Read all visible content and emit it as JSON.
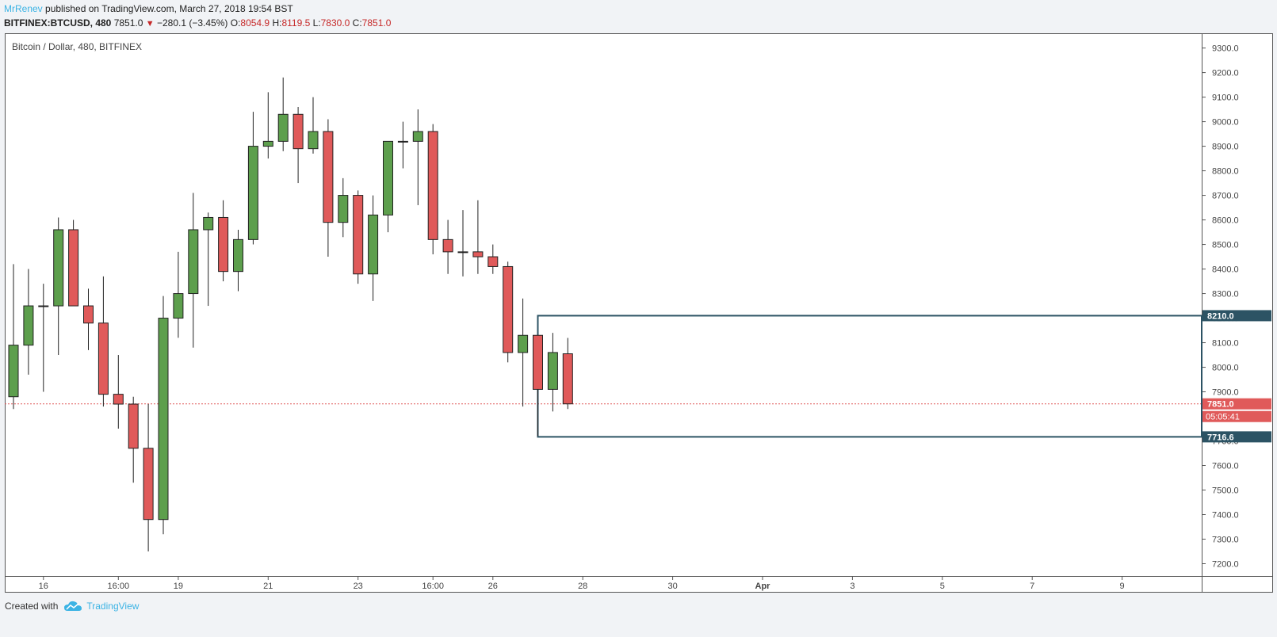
{
  "header": {
    "user": "MrRenev",
    "published": "published on TradingView.com, March 27, 2018 19:54 BST",
    "symbol": "BITFINEX:BTCUSD, 480",
    "last": "7851.0",
    "change": "−280.1 (−3.45%)",
    "o_label": "O:",
    "o_value": "8054.9",
    "h_label": "H:",
    "h_value": "8119.5",
    "l_label": "L:",
    "l_value": "7830.0",
    "c_label": "C:",
    "c_value": "7851.0"
  },
  "footer": {
    "created": "Created with",
    "brand": "TradingView"
  },
  "colors": {
    "up": "#5d9f4d",
    "down": "#e05a5a",
    "rect": "#2c5364",
    "grid": "#e6e9ec"
  },
  "chart_data": {
    "type": "candlestick",
    "title": "Bitcoin / Dollar, 480, BITFINEX",
    "ylim": [
      7150,
      9360
    ],
    "y_ticks": [
      "9300.0",
      "9200.0",
      "9100.0",
      "9000.0",
      "8900.0",
      "8800.0",
      "8700.0",
      "8600.0",
      "8500.0",
      "8400.0",
      "8300.0",
      "8200.0",
      "8100.0",
      "8000.0",
      "7900.0",
      "7800.0",
      "7700.0",
      "7600.0",
      "7500.0",
      "7400.0",
      "7300.0",
      "7200.0"
    ],
    "x_ticks": [
      {
        "slot": 2,
        "label": "16"
      },
      {
        "slot": 7,
        "label": "16:00"
      },
      {
        "slot": 11,
        "label": "19"
      },
      {
        "slot": 17,
        "label": "21"
      },
      {
        "slot": 23,
        "label": "23"
      },
      {
        "slot": 28,
        "label": "16:00"
      },
      {
        "slot": 32,
        "label": "26"
      },
      {
        "slot": 38,
        "label": "28"
      },
      {
        "slot": 44,
        "label": "30"
      },
      {
        "slot": 50,
        "label": "Apr"
      },
      {
        "slot": 56,
        "label": "3"
      },
      {
        "slot": 62,
        "label": "5"
      },
      {
        "slot": 68,
        "label": "7"
      },
      {
        "slot": 74,
        "label": "9"
      }
    ],
    "candles": [
      {
        "o": 7880,
        "h": 8420,
        "l": 7830,
        "c": 8090
      },
      {
        "o": 8090,
        "h": 8400,
        "l": 7970,
        "c": 8250
      },
      {
        "o": 8250,
        "h": 8340,
        "l": 7900,
        "c": 8250
      },
      {
        "o": 8250,
        "h": 8610,
        "l": 8050,
        "c": 8560
      },
      {
        "o": 8560,
        "h": 8600,
        "l": 8250,
        "c": 8250
      },
      {
        "o": 8250,
        "h": 8320,
        "l": 8070,
        "c": 8180
      },
      {
        "o": 8180,
        "h": 8370,
        "l": 7840,
        "c": 7890
      },
      {
        "o": 7890,
        "h": 8050,
        "l": 7750,
        "c": 7850
      },
      {
        "o": 7850,
        "h": 7880,
        "l": 7530,
        "c": 7670
      },
      {
        "o": 7670,
        "h": 7850,
        "l": 7250,
        "c": 7380
      },
      {
        "o": 7380,
        "h": 8290,
        "l": 7320,
        "c": 8200
      },
      {
        "o": 8200,
        "h": 8470,
        "l": 8120,
        "c": 8300
      },
      {
        "o": 8300,
        "h": 8710,
        "l": 8080,
        "c": 8560
      },
      {
        "o": 8560,
        "h": 8630,
        "l": 8250,
        "c": 8610
      },
      {
        "o": 8610,
        "h": 8680,
        "l": 8350,
        "c": 8390
      },
      {
        "o": 8390,
        "h": 8560,
        "l": 8310,
        "c": 8520
      },
      {
        "o": 8520,
        "h": 9040,
        "l": 8500,
        "c": 8900
      },
      {
        "o": 8900,
        "h": 9120,
        "l": 8850,
        "c": 8920
      },
      {
        "o": 8920,
        "h": 9180,
        "l": 8880,
        "c": 9030
      },
      {
        "o": 9030,
        "h": 9060,
        "l": 8750,
        "c": 8890
      },
      {
        "o": 8890,
        "h": 9100,
        "l": 8870,
        "c": 8960
      },
      {
        "o": 8960,
        "h": 9010,
        "l": 8450,
        "c": 8590
      },
      {
        "o": 8590,
        "h": 8770,
        "l": 8530,
        "c": 8700
      },
      {
        "o": 8700,
        "h": 8720,
        "l": 8340,
        "c": 8380
      },
      {
        "o": 8380,
        "h": 8700,
        "l": 8270,
        "c": 8620
      },
      {
        "o": 8620,
        "h": 8920,
        "l": 8550,
        "c": 8920
      },
      {
        "o": 8920,
        "h": 9000,
        "l": 8810,
        "c": 8920
      },
      {
        "o": 8920,
        "h": 9050,
        "l": 8660,
        "c": 8960
      },
      {
        "o": 8960,
        "h": 8990,
        "l": 8460,
        "c": 8520
      },
      {
        "o": 8520,
        "h": 8600,
        "l": 8380,
        "c": 8470
      },
      {
        "o": 8470,
        "h": 8640,
        "l": 8370,
        "c": 8470
      },
      {
        "o": 8470,
        "h": 8680,
        "l": 8380,
        "c": 8450
      },
      {
        "o": 8450,
        "h": 8500,
        "l": 8380,
        "c": 8410
      },
      {
        "o": 8410,
        "h": 8430,
        "l": 8020,
        "c": 8060
      },
      {
        "o": 8060,
        "h": 8280,
        "l": 7840,
        "c": 8130
      },
      {
        "o": 8130,
        "h": 8130,
        "l": 7720,
        "c": 7910
      },
      {
        "o": 7910,
        "h": 8140,
        "l": 7820,
        "c": 8060
      },
      {
        "o": 8054.9,
        "h": 8119.5,
        "l": 7830,
        "c": 7851
      }
    ],
    "current_price": {
      "value": 7851.0,
      "label": "7851.0",
      "countdown": "05:05:41"
    },
    "box": {
      "top": 8210.0,
      "top_label": "8210.0",
      "bottom": 7716.6,
      "bottom_label": "7716.6",
      "start_slot": 35
    }
  }
}
